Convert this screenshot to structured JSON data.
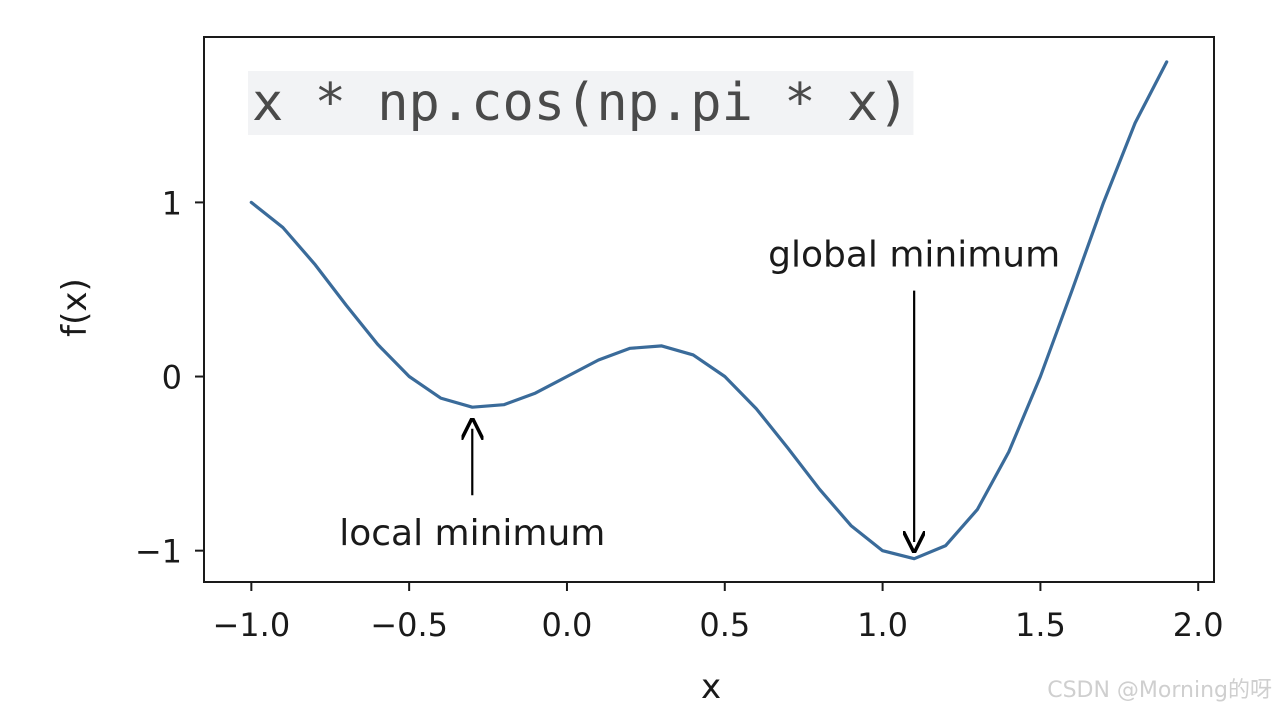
{
  "chart_data": {
    "type": "line",
    "title": "x * np.cos(np.pi * x)",
    "xlabel": "x",
    "ylabel": "f(x)",
    "xlim": [
      -1.15,
      2.05
    ],
    "ylim": [
      -1.18,
      1.95
    ],
    "xticks": [
      -1.0,
      -0.5,
      0.0,
      0.5,
      1.0,
      1.5,
      2.0
    ],
    "xtick_labels": [
      "−1.0",
      "−0.5",
      "0.0",
      "0.5",
      "1.0",
      "1.5",
      "2.0"
    ],
    "yticks": [
      -1,
      0,
      1
    ],
    "ytick_labels": [
      "−1",
      "0",
      "1"
    ],
    "grid": false,
    "series": [
      {
        "color": "#3a6b9a",
        "x": [
          -1.0,
          -0.9,
          -0.8,
          -0.7,
          -0.6,
          -0.5,
          -0.4,
          -0.3,
          -0.2,
          -0.1,
          0.0,
          0.1,
          0.2,
          0.3,
          0.4,
          0.5,
          0.6,
          0.7,
          0.8,
          0.9,
          1.0,
          1.1,
          1.2,
          1.3,
          1.4,
          1.5,
          1.6,
          1.7,
          1.8,
          1.9
        ],
        "y": [
          1.0,
          0.856,
          0.647,
          0.411,
          0.185,
          0.0,
          -0.124,
          -0.176,
          -0.162,
          -0.095,
          0.0,
          0.095,
          0.162,
          0.176,
          0.124,
          0.0,
          -0.185,
          -0.411,
          -0.647,
          -0.856,
          -1.0,
          -1.046,
          -0.971,
          -0.764,
          -0.433,
          0.0,
          0.494,
          0.999,
          1.456,
          1.807
        ]
      }
    ],
    "annotations": [
      {
        "text": "local minimum",
        "xy": [
          -0.3,
          -0.3
        ],
        "xytext": [
          -0.3,
          -0.9
        ]
      },
      {
        "text": "global minimum",
        "xy": [
          1.1,
          -0.95
        ],
        "xytext": [
          1.1,
          0.7
        ]
      }
    ]
  },
  "watermark": "CSDN @Morning的呀"
}
